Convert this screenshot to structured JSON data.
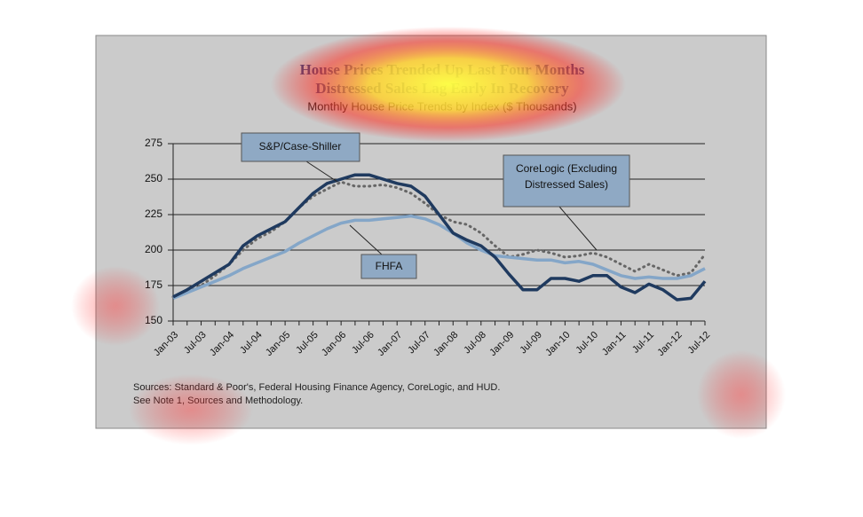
{
  "chart_data": {
    "type": "line",
    "title": "House Prices Trended Up Last Four Months",
    "title2": "Distressed Sales Lag Early In Recovery",
    "subtitle": "Monthly House Price Trends by Index ($ Thousands)",
    "categories": [
      "Jan-03",
      null,
      "Jul-03",
      null,
      "Jan-04",
      null,
      "Jul-04",
      null,
      "Jan-05",
      null,
      "Jul-05",
      null,
      "Jan-06",
      null,
      "Jul-06",
      null,
      "Jan-07",
      null,
      "Jul-07",
      null,
      "Jan-08",
      null,
      "Jul-08",
      null,
      "Jan-09",
      null,
      "Jul-09",
      null,
      "Jan-10",
      null,
      "Jul-10",
      null,
      "Jan-11",
      null,
      "Jul-11",
      null,
      "Jan-12",
      null,
      "Jul-12"
    ],
    "series": [
      {
        "name": "S&P/Case-Shiller",
        "color": "#1f3a5f",
        "style": "solid",
        "width": 3.5,
        "values": [
          167,
          172,
          178,
          184,
          190,
          203,
          210,
          215,
          220,
          230,
          240,
          247,
          250,
          253,
          253,
          250,
          247,
          245,
          238,
          225,
          212,
          207,
          203,
          195,
          183,
          172,
          172,
          180,
          180,
          178,
          182,
          182,
          174,
          170,
          176,
          172,
          165,
          166,
          178
        ]
      },
      {
        "name": "FHFA",
        "color": "#84a6c8",
        "style": "solid",
        "width": 3.5,
        "values": [
          166,
          170,
          174,
          178,
          182,
          187,
          191,
          195,
          199,
          205,
          210,
          215,
          219,
          221,
          221,
          222,
          223,
          224,
          222,
          218,
          212,
          205,
          200,
          196,
          195,
          194,
          193,
          193,
          191,
          192,
          190,
          186,
          182,
          180,
          181,
          180,
          180,
          182,
          187
        ]
      },
      {
        "name": "CoreLogic (Excluding Distressed Sales)",
        "name_lines": [
          "CoreLogic (Excluding",
          "Distressed Sales)"
        ],
        "color": "#666666",
        "style": "dotted",
        "width": 3,
        "values": [
          167,
          170,
          175,
          182,
          190,
          200,
          208,
          213,
          220,
          230,
          238,
          243,
          248,
          245,
          245,
          246,
          244,
          240,
          233,
          225,
          220,
          218,
          212,
          203,
          195,
          197,
          200,
          198,
          195,
          196,
          198,
          195,
          190,
          185,
          190,
          186,
          182,
          184,
          197
        ]
      }
    ],
    "ylim": [
      150,
      275
    ],
    "yticks": [
      150,
      175,
      200,
      225,
      250,
      275
    ],
    "grid": true,
    "sources": [
      "Sources:  Standard & Poor's, Federal Housing Finance Agency, CoreLogic, and HUD.",
      "See Note 1, Sources and Methodology."
    ]
  }
}
